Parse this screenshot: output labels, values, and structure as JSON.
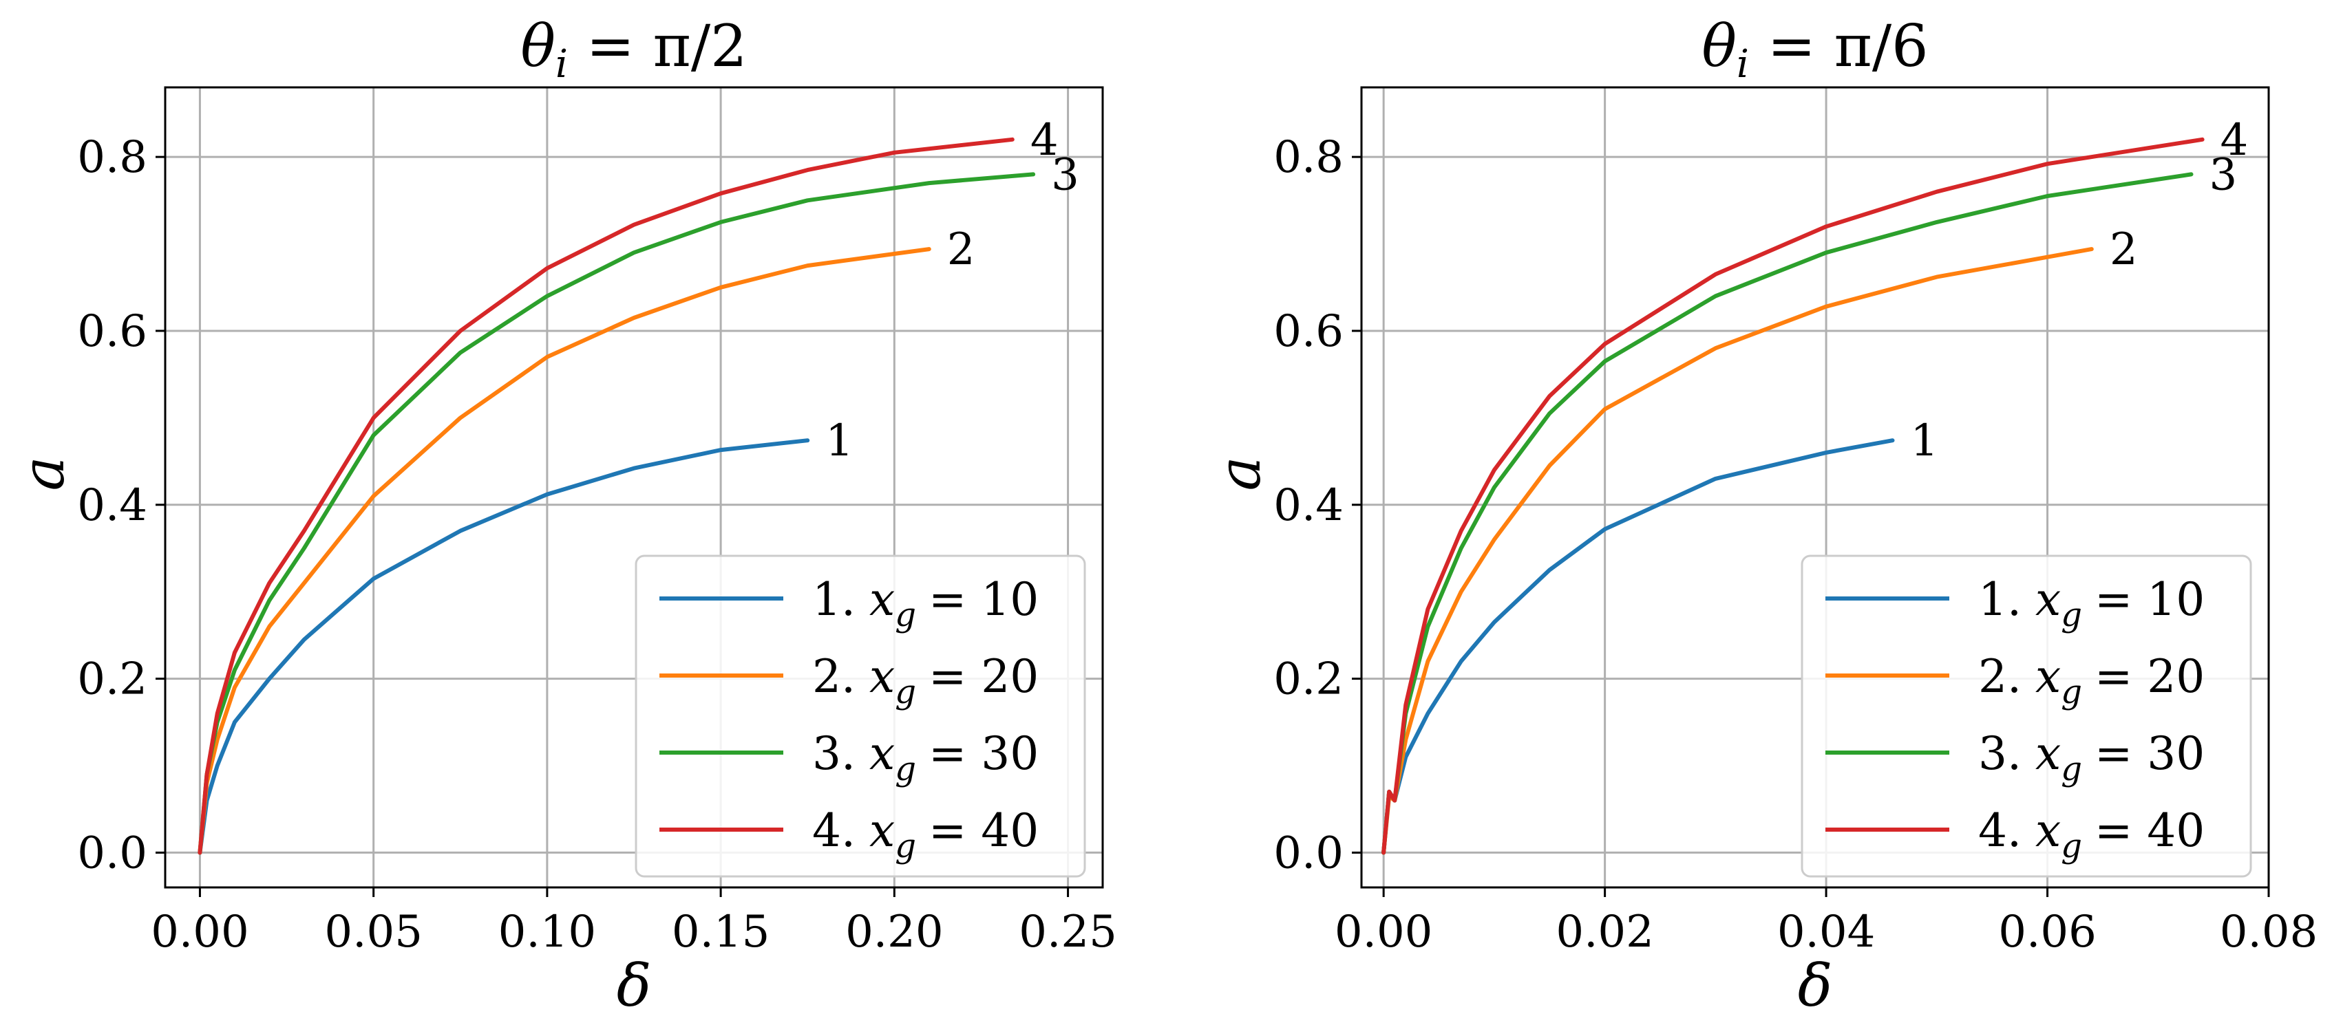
{
  "chart_data": [
    {
      "type": "line",
      "title": "θ_i = π/2",
      "xlabel": "δ",
      "ylabel": "a",
      "xlim": [
        -0.01,
        0.26
      ],
      "ylim": [
        -0.04,
        0.88
      ],
      "xticks": [
        0.0,
        0.05,
        0.1,
        0.15,
        0.2,
        0.25
      ],
      "xtick_labels": [
        "0.00",
        "0.05",
        "0.10",
        "0.15",
        "0.20",
        "0.25"
      ],
      "yticks": [
        0.0,
        0.2,
        0.4,
        0.6,
        0.8
      ],
      "ytick_labels": [
        "0.0",
        "0.2",
        "0.4",
        "0.6",
        "0.8"
      ],
      "grid": true,
      "legend_position": "lower-right",
      "series": [
        {
          "name": "1. x_g = 10",
          "label_num": "1",
          "legend_prefix": "1.",
          "legend_var": "x",
          "legend_sub": "g",
          "legend_val": "= 10",
          "color": "#1f77b4",
          "x": [
            0,
            0.002,
            0.005,
            0.01,
            0.02,
            0.03,
            0.05,
            0.075,
            0.1,
            0.125,
            0.15,
            0.175
          ],
          "y": [
            0,
            0.06,
            0.1,
            0.15,
            0.2,
            0.245,
            0.315,
            0.37,
            0.412,
            0.442,
            0.463,
            0.474
          ]
        },
        {
          "name": "2. x_g = 20",
          "label_num": "2",
          "legend_prefix": "2.",
          "legend_var": "x",
          "legend_sub": "g",
          "legend_val": "= 20",
          "color": "#ff7f0e",
          "x": [
            0,
            0.002,
            0.005,
            0.01,
            0.02,
            0.03,
            0.05,
            0.075,
            0.1,
            0.125,
            0.15,
            0.175,
            0.21
          ],
          "y": [
            0,
            0.08,
            0.13,
            0.19,
            0.26,
            0.31,
            0.41,
            0.5,
            0.57,
            0.615,
            0.65,
            0.675,
            0.694
          ]
        },
        {
          "name": "3. x_g = 30",
          "label_num": "3",
          "legend_prefix": "3.",
          "legend_var": "x",
          "legend_sub": "g",
          "legend_val": "= 30",
          "color": "#2ca02c",
          "x": [
            0,
            0.002,
            0.005,
            0.01,
            0.02,
            0.03,
            0.05,
            0.075,
            0.1,
            0.125,
            0.15,
            0.175,
            0.21,
            0.24
          ],
          "y": [
            0,
            0.09,
            0.15,
            0.21,
            0.29,
            0.35,
            0.48,
            0.575,
            0.64,
            0.69,
            0.725,
            0.75,
            0.77,
            0.78
          ]
        },
        {
          "name": "4. x_g = 40",
          "label_num": "4",
          "legend_prefix": "4.",
          "legend_var": "x",
          "legend_sub": "g",
          "legend_val": "= 40",
          "color": "#d62728",
          "x": [
            0,
            0.002,
            0.005,
            0.01,
            0.02,
            0.03,
            0.05,
            0.075,
            0.1,
            0.125,
            0.15,
            0.175,
            0.2,
            0.234
          ],
          "y": [
            0,
            0.09,
            0.16,
            0.23,
            0.31,
            0.37,
            0.5,
            0.6,
            0.672,
            0.722,
            0.758,
            0.785,
            0.805,
            0.82
          ]
        }
      ]
    },
    {
      "type": "line",
      "title": "θ_i = π/6",
      "xlabel": "δ",
      "ylabel": "a",
      "xlim": [
        -0.002,
        0.08
      ],
      "ylim": [
        -0.04,
        0.88
      ],
      "xticks": [
        0.0,
        0.02,
        0.04,
        0.06,
        0.08
      ],
      "xtick_labels": [
        "0.00",
        "0.02",
        "0.04",
        "0.06",
        "0.08"
      ],
      "yticks": [
        0.0,
        0.2,
        0.4,
        0.6,
        0.8
      ],
      "ytick_labels": [
        "0.0",
        "0.2",
        "0.4",
        "0.6",
        "0.8"
      ],
      "grid": true,
      "legend_position": "lower-right",
      "series": [
        {
          "name": "1. x_g = 10",
          "label_num": "1",
          "legend_prefix": "1.",
          "legend_var": "x",
          "legend_sub": "g",
          "legend_val": "= 10",
          "color": "#1f77b4",
          "x": [
            0,
            0.0005,
            0.001,
            0.002,
            0.004,
            0.007,
            0.01,
            0.015,
            0.02,
            0.03,
            0.04,
            0.046
          ],
          "y": [
            0,
            0.07,
            0.06,
            0.11,
            0.16,
            0.22,
            0.265,
            0.325,
            0.372,
            0.43,
            0.46,
            0.474
          ]
        },
        {
          "name": "2. x_g = 20",
          "label_num": "2",
          "legend_prefix": "2.",
          "legend_var": "x",
          "legend_sub": "g",
          "legend_val": "= 20",
          "color": "#ff7f0e",
          "x": [
            0,
            0.0005,
            0.001,
            0.002,
            0.004,
            0.007,
            0.01,
            0.015,
            0.02,
            0.03,
            0.04,
            0.05,
            0.064
          ],
          "y": [
            0,
            0.065,
            0.06,
            0.13,
            0.22,
            0.3,
            0.36,
            0.445,
            0.51,
            0.58,
            0.628,
            0.662,
            0.694
          ]
        },
        {
          "name": "3. x_g = 30",
          "label_num": "3",
          "legend_prefix": "3.",
          "legend_var": "x",
          "legend_sub": "g",
          "legend_val": "= 30",
          "color": "#2ca02c",
          "x": [
            0,
            0.0005,
            0.001,
            0.002,
            0.004,
            0.007,
            0.01,
            0.015,
            0.02,
            0.03,
            0.04,
            0.05,
            0.06,
            0.073
          ],
          "y": [
            0,
            0.07,
            0.06,
            0.16,
            0.26,
            0.35,
            0.42,
            0.505,
            0.565,
            0.64,
            0.69,
            0.725,
            0.755,
            0.78
          ]
        },
        {
          "name": "4. x_g = 40",
          "label_num": "4",
          "legend_prefix": "4.",
          "legend_var": "x",
          "legend_sub": "g",
          "legend_val": "= 40",
          "color": "#d62728",
          "x": [
            0,
            0.0005,
            0.001,
            0.002,
            0.004,
            0.007,
            0.01,
            0.015,
            0.02,
            0.03,
            0.04,
            0.05,
            0.06,
            0.074
          ],
          "y": [
            0,
            0.07,
            0.06,
            0.17,
            0.28,
            0.37,
            0.44,
            0.525,
            0.585,
            0.665,
            0.72,
            0.76,
            0.792,
            0.82
          ]
        }
      ]
    }
  ]
}
